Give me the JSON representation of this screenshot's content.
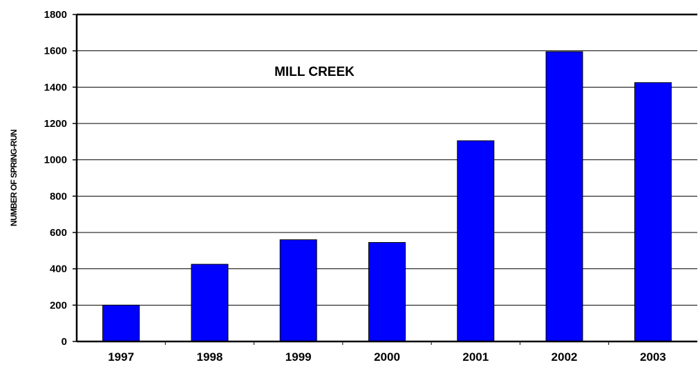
{
  "chart_data": {
    "type": "bar",
    "title": "MILL CREEK",
    "xlabel": "",
    "ylabel": "NUMBER OF SPRING-RUN",
    "categories": [
      "1997",
      "1998",
      "1999",
      "2000",
      "2001",
      "2002",
      "2003"
    ],
    "values": [
      200,
      425,
      560,
      545,
      1105,
      1595,
      1425
    ],
    "ylim": [
      0,
      1800
    ],
    "yticks": [
      "0",
      "200",
      "400",
      "600",
      "800",
      "1000",
      "1200",
      "1400",
      "1600",
      "1800"
    ],
    "grid": true,
    "legend": "none",
    "bar_color": "#0000ff",
    "bar_edge_color": "#000000"
  }
}
